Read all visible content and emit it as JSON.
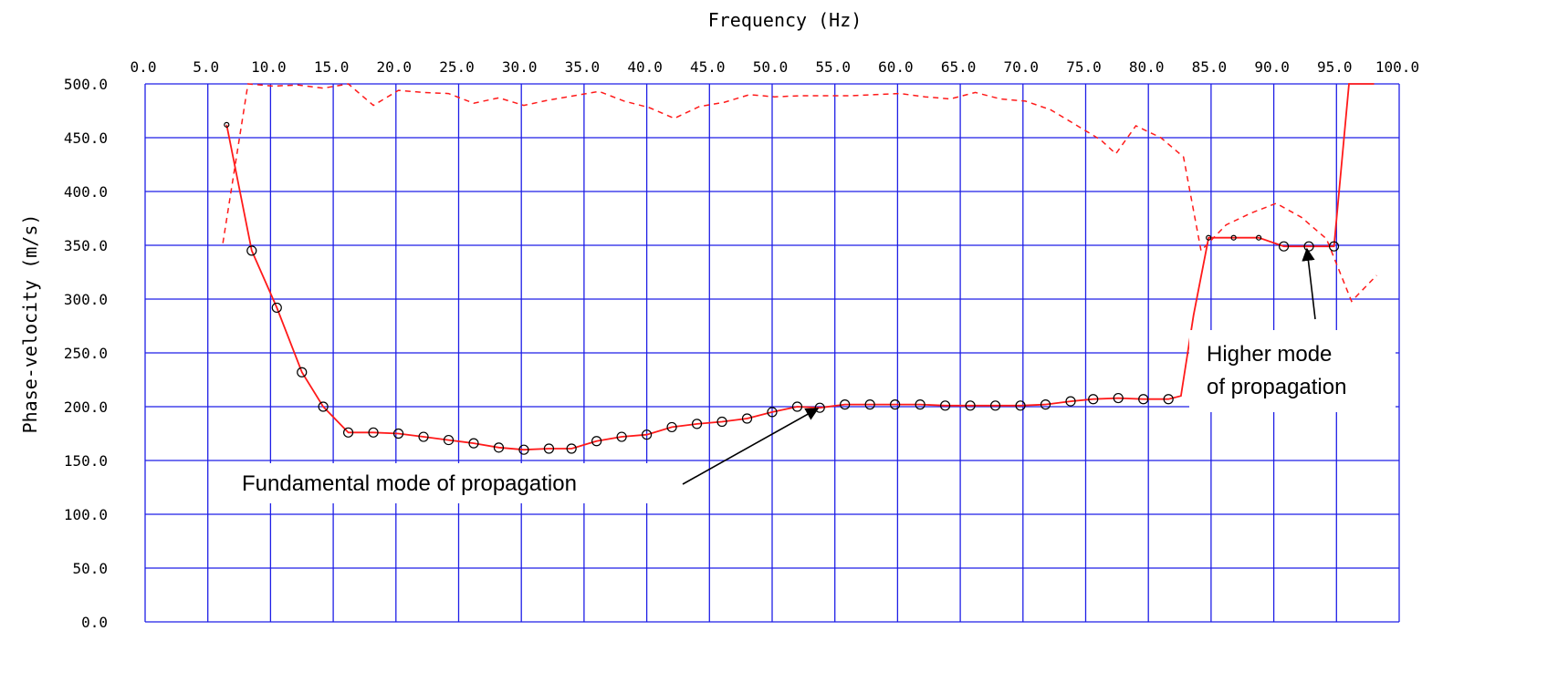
{
  "chart_data": {
    "type": "line",
    "title": "",
    "xlabel": "Frequency (Hz)",
    "ylabel": "Phase-velocity (m/s)",
    "xlim": [
      0,
      100
    ],
    "ylim": [
      0,
      500
    ],
    "grid": true,
    "x_axis_position": "top",
    "colors": {
      "grid": "#1f1fe6",
      "curve": "#ff1a1a",
      "markers": "#000000"
    },
    "x_ticks": [
      "0.0",
      "5.0",
      "10.0",
      "15.0",
      "20.0",
      "25.0",
      "30.0",
      "35.0",
      "40.0",
      "45.0",
      "50.0",
      "55.0",
      "60.0",
      "65.0",
      "70.0",
      "75.0",
      "80.0",
      "85.0",
      "90.0",
      "95.0",
      "100.0"
    ],
    "y_ticks": [
      "500.0",
      "450.0",
      "400.0",
      "350.0",
      "300.0",
      "250.0",
      "200.0",
      "150.0",
      "100.0",
      "50.0",
      "0.0"
    ],
    "series": [
      {
        "style": "solid",
        "marker": "open-circle",
        "x": [
          6.5,
          8.5,
          10.5,
          12.5,
          14.2,
          16.2,
          18.2,
          20.2,
          22.2,
          24.2,
          26.2,
          28.2,
          30.2,
          32.2,
          34.0,
          36.0,
          38.0,
          40.0,
          42.0,
          44.0,
          46.0,
          48.0,
          50.0,
          52.0,
          53.8,
          55.8,
          57.8,
          59.8,
          61.8,
          63.8,
          65.8,
          67.8,
          69.8,
          71.8,
          73.8,
          75.6,
          77.6,
          79.6,
          81.6,
          82.6,
          83.6,
          84.8,
          86.8,
          88.8,
          90.8,
          92.8,
          94.8,
          96.0,
          98.0
        ],
        "y": [
          462,
          345,
          292,
          232,
          200,
          176,
          176,
          175,
          172,
          169,
          166,
          162,
          160,
          161,
          161,
          168,
          172,
          174,
          181,
          184,
          186,
          189,
          195,
          200,
          199,
          202,
          202,
          202,
          202,
          201,
          201,
          201,
          201,
          202,
          205,
          207,
          208,
          207,
          207,
          210,
          285,
          357,
          357,
          357,
          349,
          349,
          349,
          500,
          500
        ]
      },
      {
        "style": "dashed",
        "marker": "none",
        "x": [
          6.2,
          8.2,
          10.2,
          12.2,
          14.2,
          16.2,
          18.2,
          20.2,
          22.2,
          24.2,
          26.2,
          28.2,
          30.2,
          32.2,
          34.2,
          36.2,
          38.2,
          40.2,
          42.2,
          44.2,
          46.2,
          48.2,
          50.2,
          52.2,
          54.2,
          56.2,
          58.2,
          60.2,
          62.2,
          64.2,
          66.2,
          68.2,
          70.2,
          72.2,
          74.2,
          76.2,
          77.4,
          79.0,
          81.0,
          82.8,
          84.2,
          86.2,
          88.2,
          90.2,
          92.2,
          94.2,
          96.2,
          98.2
        ],
        "y": [
          352,
          500,
          498,
          499,
          496,
          500,
          480,
          494,
          492,
          491,
          482,
          487,
          480,
          485,
          489,
          493,
          484,
          478,
          468,
          479,
          483,
          490,
          488,
          489,
          489,
          489,
          490,
          491,
          488,
          486,
          492,
          486,
          484,
          476,
          462,
          448,
          435,
          461,
          450,
          432,
          345,
          369,
          380,
          389,
          376,
          356,
          298,
          322
        ]
      }
    ],
    "annotations": [
      {
        "text": "Fundamental mode of propagation",
        "arrow_to": [
          53.5,
          200
        ]
      },
      {
        "lines": [
          "Higher mode",
          "of propagation"
        ],
        "arrow_to": [
          92.5,
          350
        ]
      }
    ]
  }
}
